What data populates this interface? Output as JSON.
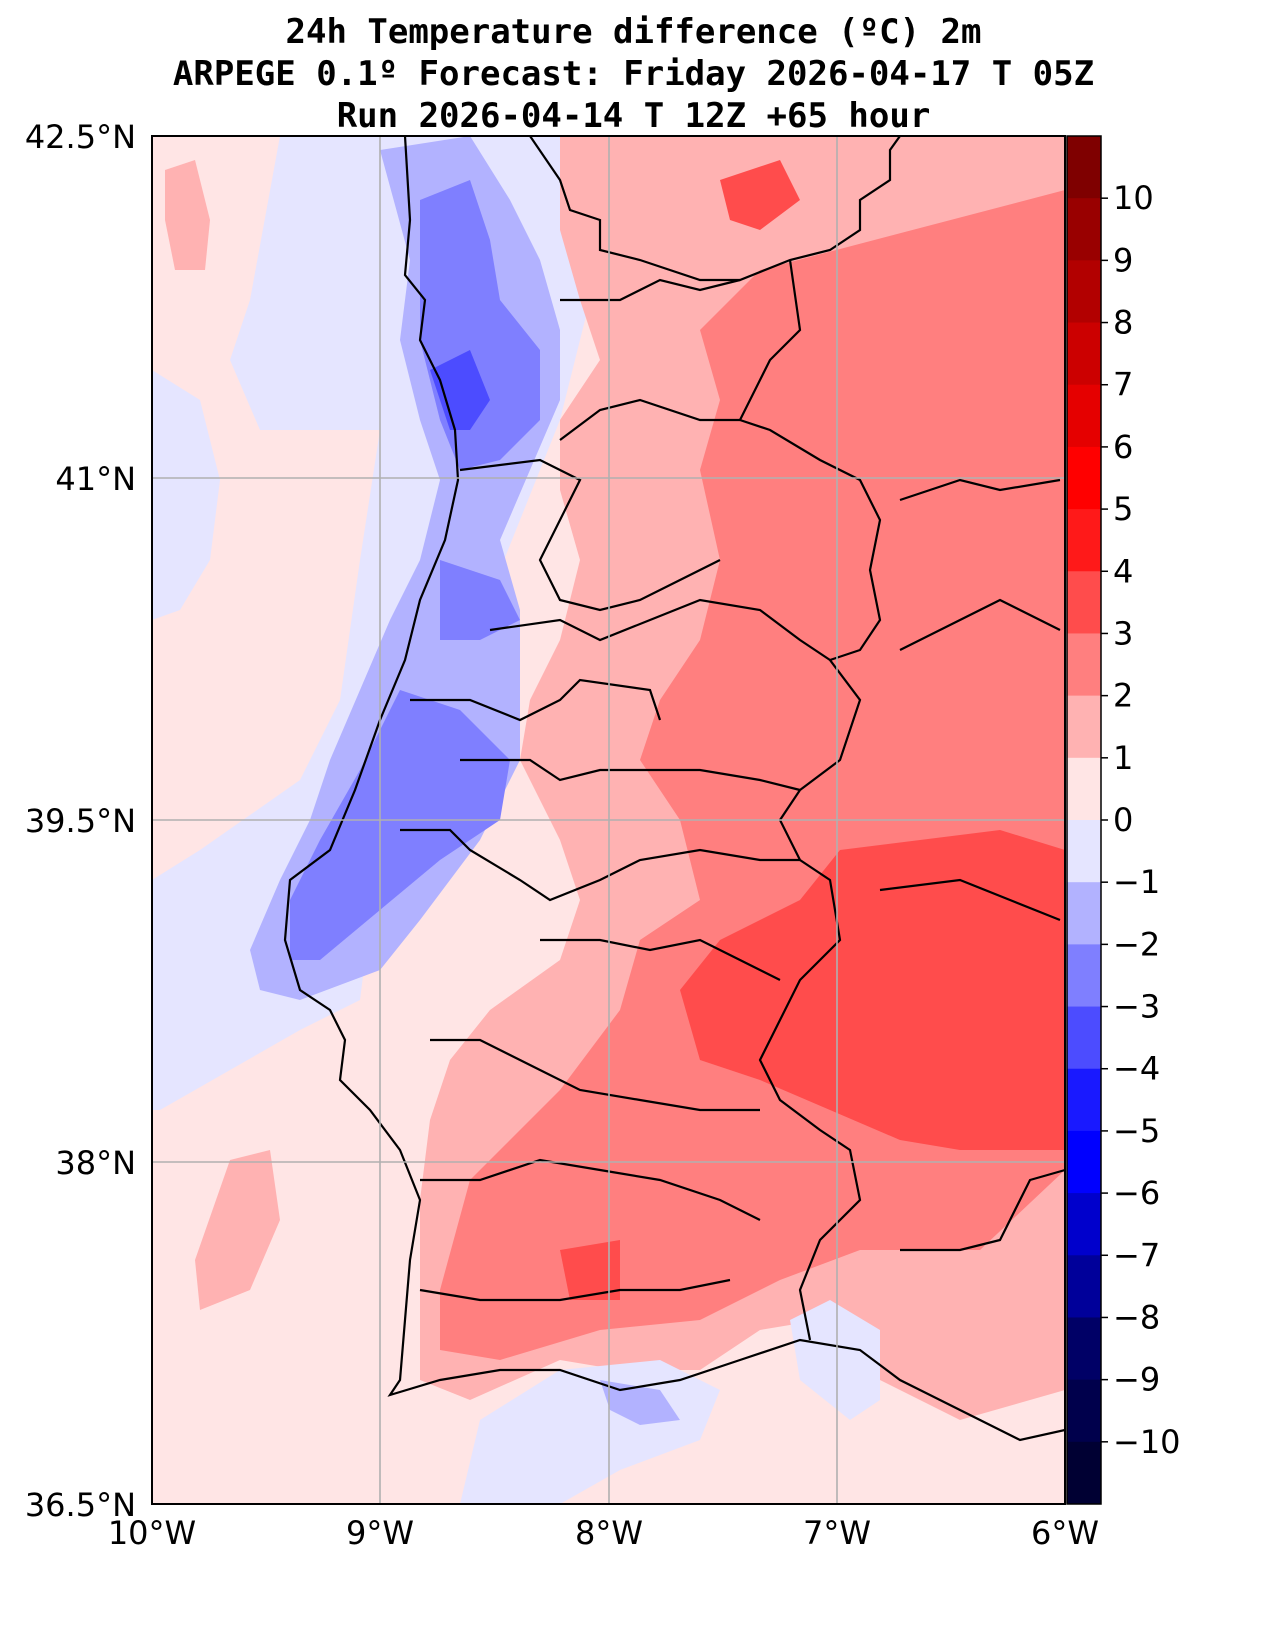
{
  "title": {
    "line1": "24h Temperature difference (ºC) 2m",
    "line2": "ARPEGE 0.1º Forecast: Friday 2026-04-17 T 05Z",
    "line3": "Run 2026-04-14 T 12Z +65 hour"
  },
  "axes": {
    "lon_ticks": [
      "10°W",
      "9°W",
      "8°W",
      "7°W",
      "6°W"
    ],
    "lat_ticks": [
      "42.5°N",
      "41°N",
      "39.5°N",
      "38°N",
      "36.5°N"
    ],
    "lon_range": [
      -10,
      -6
    ],
    "lat_range": [
      36.5,
      42.5
    ]
  },
  "colorbar": {
    "labels": [
      "10",
      "9",
      "8",
      "7",
      "6",
      "5",
      "4",
      "3",
      "2",
      "1",
      "0",
      "−1",
      "−2",
      "−3",
      "−4",
      "−5",
      "−6",
      "−7",
      "−8",
      "−9",
      "−10"
    ],
    "colors": [
      "#7f0000",
      "#990000",
      "#b20000",
      "#cc0000",
      "#e50000",
      "#ff0000",
      "#ff1919",
      "#ff4c4c",
      "#ff7f7f",
      "#ffb2b2",
      "#ffe5e5",
      "#e5e5ff",
      "#b2b2ff",
      "#7f7fff",
      "#4c4cff",
      "#1919ff",
      "#0000ff",
      "#0000cc",
      "#00009a",
      "#000066",
      "#00004c",
      "#000033"
    ]
  }
}
